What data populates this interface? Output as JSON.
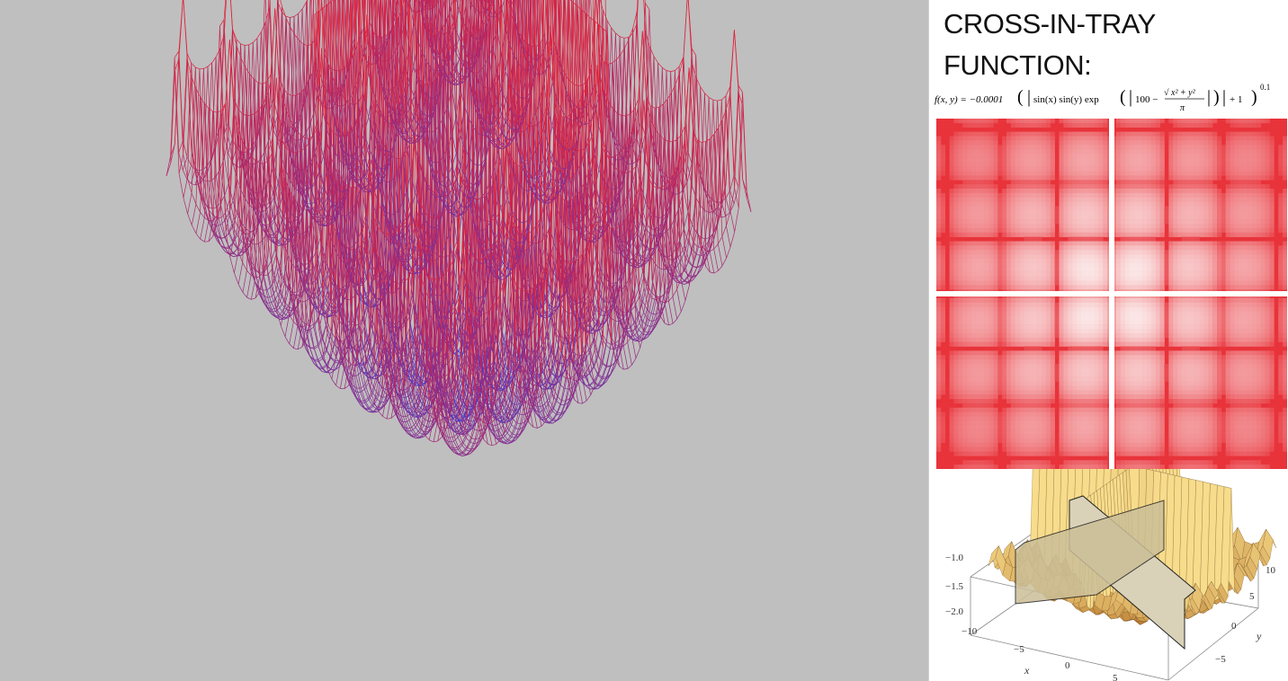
{
  "title": "CROSS-IN-TRAY FUNCTION:",
  "formula": {
    "lhs": "f(x, y) = −0.0001",
    "body": "sin(x) sin(y) exp",
    "hundred": "100 −",
    "sqrt": "x² + y²",
    "pi": "π",
    "plus_one": "+ 1",
    "exponent": "0.1"
  },
  "colors": {
    "background": "#bfbfbf",
    "panel": "#ffffff",
    "mesh_low": "#3a3ad6",
    "mesh_high": "#e0203a",
    "contour_bg": "#e8333a",
    "surface": "#e7c060"
  },
  "surface_plot": {
    "z_ticks": [
      "−1.0",
      "−1.5",
      "−2.0"
    ],
    "x_ticks": [
      "−10",
      "−5",
      "0",
      "5"
    ],
    "y_ticks": [
      "10",
      "5",
      "0",
      "−5"
    ],
    "x_label": "x",
    "y_label": "y"
  }
}
